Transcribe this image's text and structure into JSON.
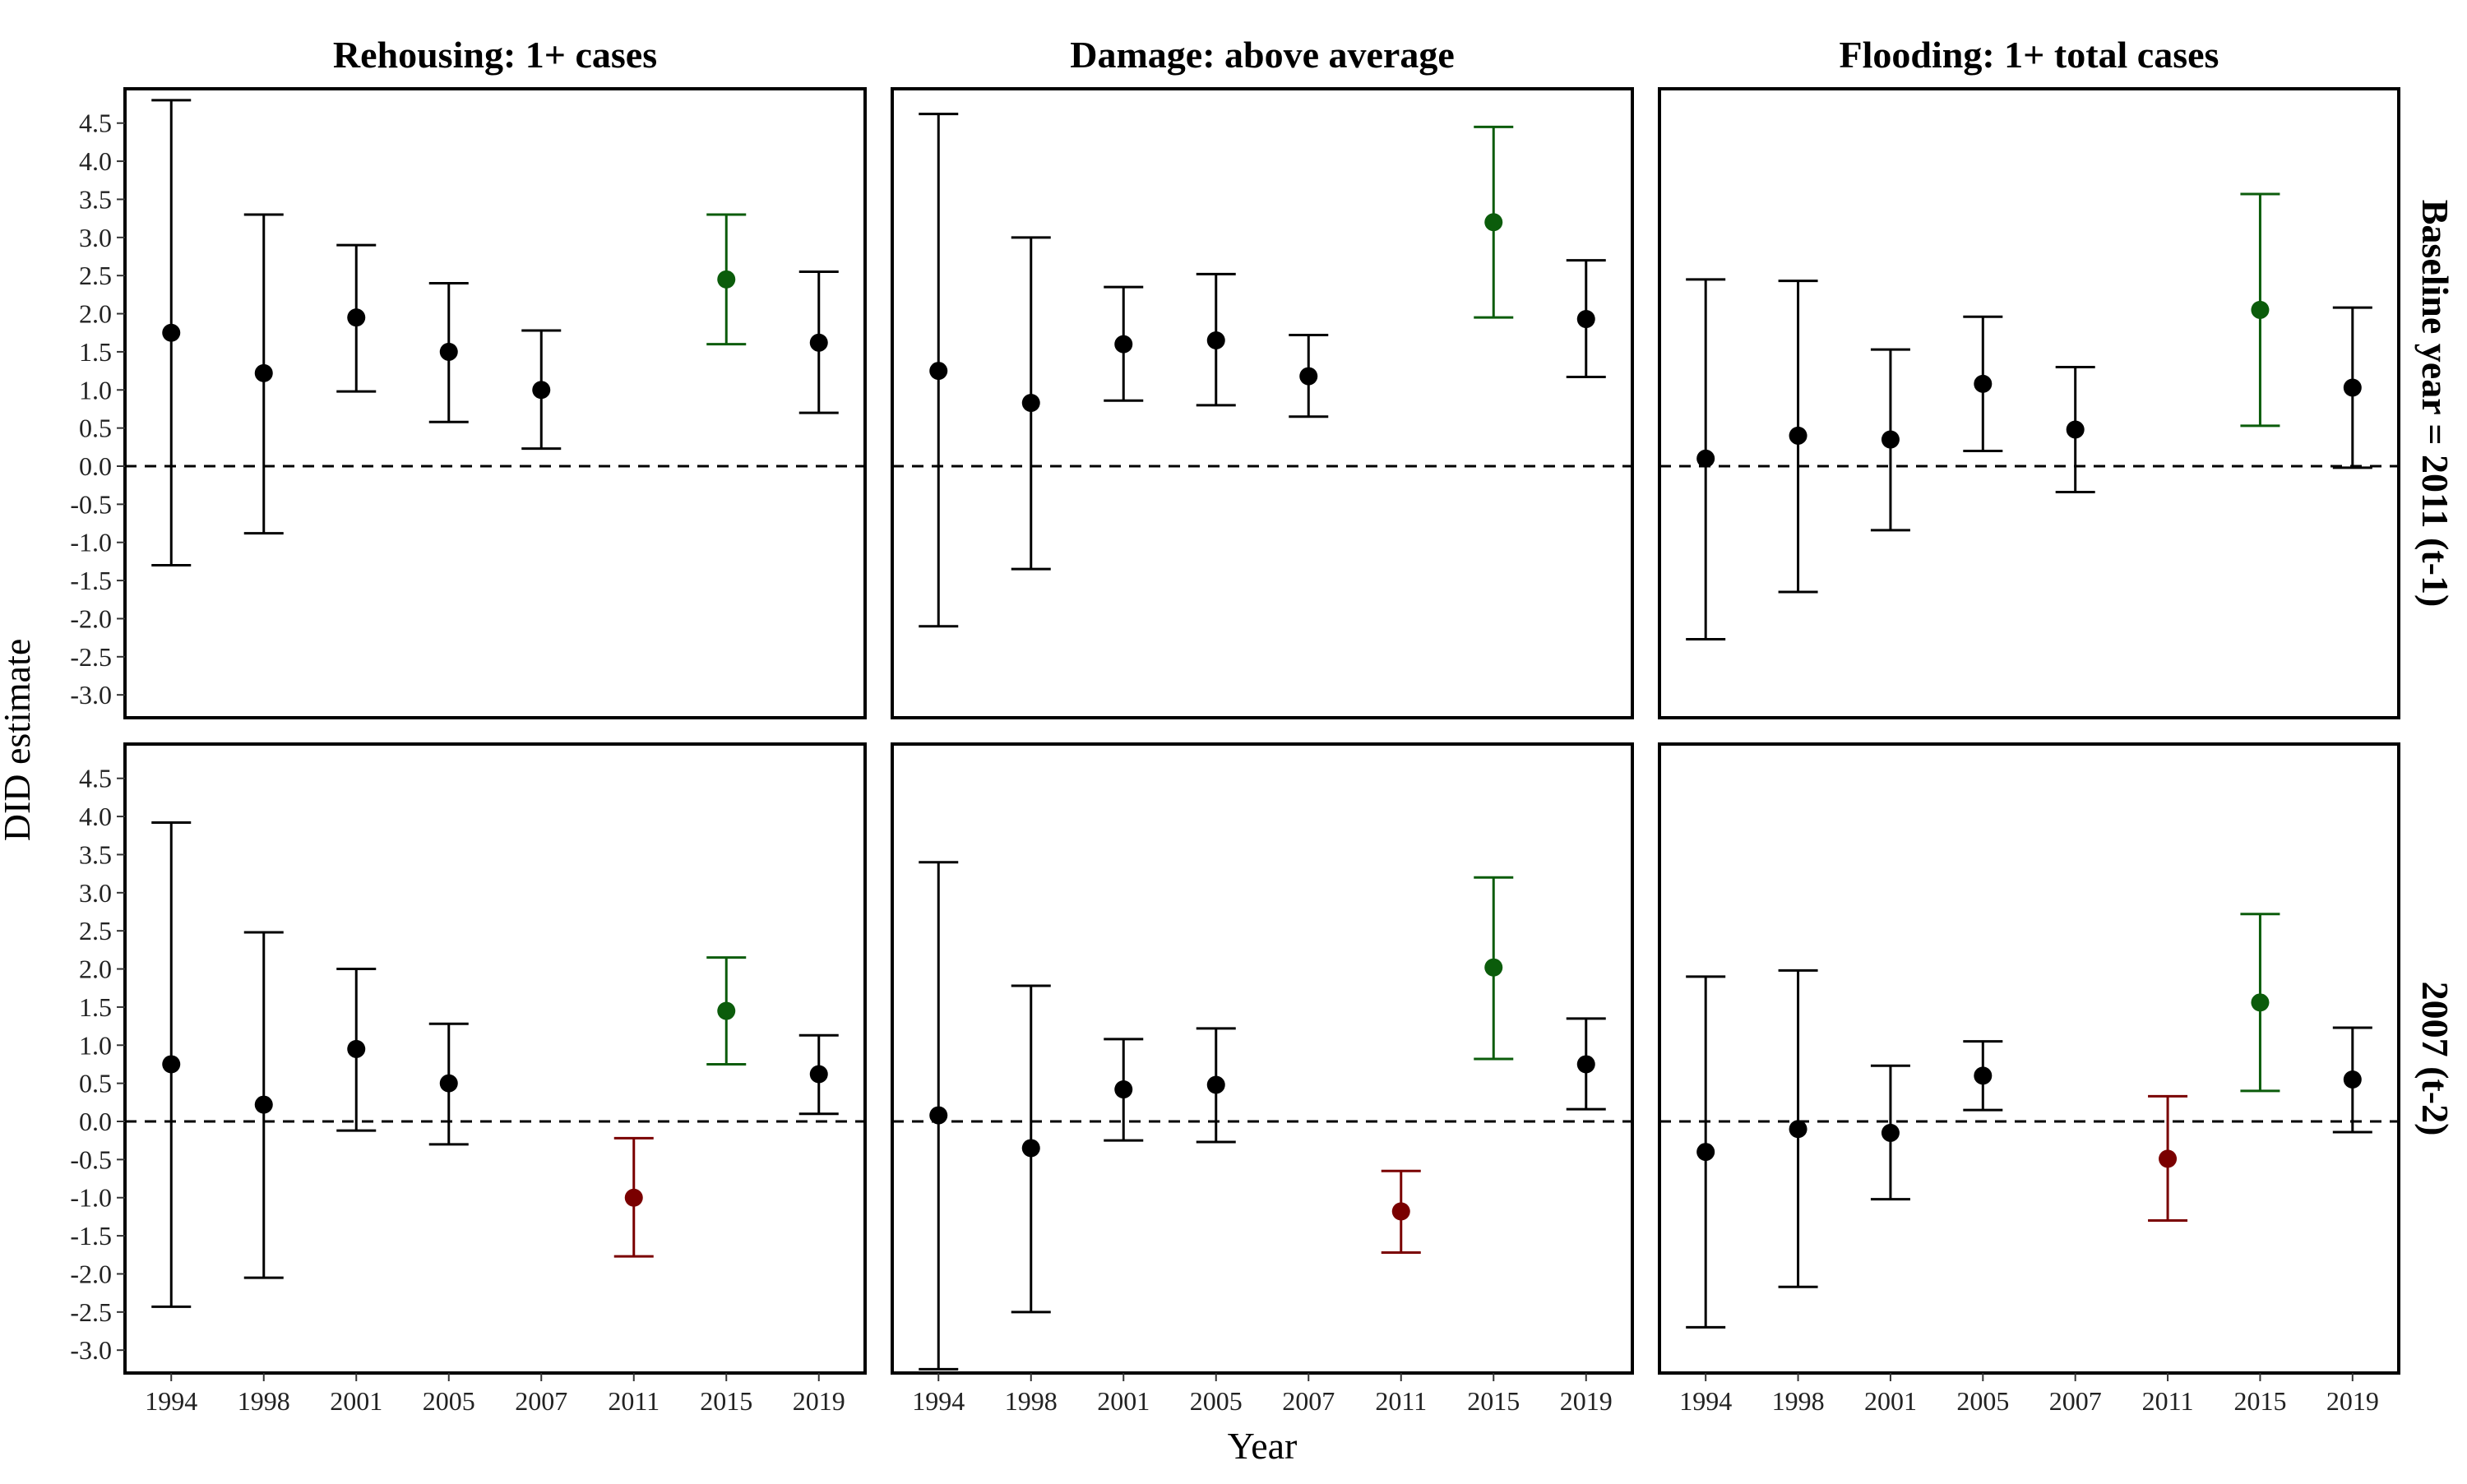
{
  "chart_data": {
    "type": "scatter",
    "kind": "faceted point estimates with confidence-interval error bars",
    "xlabel": "Year",
    "ylabel": "DID estimate",
    "categories": [
      "1994",
      "1998",
      "2001",
      "2005",
      "2007",
      "2011",
      "2015",
      "2019"
    ],
    "yticks": [
      4.5,
      4.0,
      3.5,
      3.0,
      2.5,
      2.0,
      1.5,
      1.0,
      0.5,
      0.0,
      -0.5,
      -1.0,
      -1.5,
      -2.0,
      -2.5,
      -3.0
    ],
    "ytick_labels": [
      "4.5",
      "4.0",
      "3.5",
      "3.0",
      "2.5",
      "2.0",
      "1.5",
      "1.0",
      "0.5",
      "0.0",
      "-0.5",
      "-1.0",
      "-1.5",
      "-2.0",
      "-2.5",
      "-3.0"
    ],
    "ylim": [
      -3.3,
      4.95
    ],
    "reference_line": {
      "y": 0,
      "style": "dashed"
    },
    "grid": false,
    "colors": {
      "default": "#000000",
      "positive": "#0b5c0b",
      "negative": "#7a0000"
    },
    "column_titles": [
      "Rehousing: 1+ cases",
      "Damage: above average",
      "Flooding: 1+ total cases"
    ],
    "row_titles": [
      "Baseline year = 2011 (t-1)",
      "2007 (t-2)"
    ],
    "panels": [
      {
        "row": 0,
        "col": 0,
        "points": [
          {
            "year": "1994",
            "est": 1.75,
            "lo": -1.3,
            "hi": 4.8,
            "color": "default"
          },
          {
            "year": "1998",
            "est": 1.22,
            "lo": -0.88,
            "hi": 3.3,
            "color": "default"
          },
          {
            "year": "2001",
            "est": 1.95,
            "lo": 0.98,
            "hi": 2.9,
            "color": "default"
          },
          {
            "year": "2005",
            "est": 1.5,
            "lo": 0.58,
            "hi": 2.4,
            "color": "default"
          },
          {
            "year": "2007",
            "est": 1.0,
            "lo": 0.23,
            "hi": 1.78,
            "color": "default"
          },
          {
            "year": "2015",
            "est": 2.45,
            "lo": 1.6,
            "hi": 3.3,
            "color": "positive"
          },
          {
            "year": "2019",
            "est": 1.62,
            "lo": 0.7,
            "hi": 2.55,
            "color": "default"
          }
        ]
      },
      {
        "row": 0,
        "col": 1,
        "points": [
          {
            "year": "1994",
            "est": 1.25,
            "lo": -2.1,
            "hi": 4.62,
            "color": "default"
          },
          {
            "year": "1998",
            "est": 0.83,
            "lo": -1.35,
            "hi": 3.0,
            "color": "default"
          },
          {
            "year": "2001",
            "est": 1.6,
            "lo": 0.86,
            "hi": 2.35,
            "color": "default"
          },
          {
            "year": "2005",
            "est": 1.65,
            "lo": 0.8,
            "hi": 2.52,
            "color": "default"
          },
          {
            "year": "2007",
            "est": 1.18,
            "lo": 0.65,
            "hi": 1.72,
            "color": "default"
          },
          {
            "year": "2015",
            "est": 3.2,
            "lo": 1.95,
            "hi": 4.45,
            "color": "positive"
          },
          {
            "year": "2019",
            "est": 1.93,
            "lo": 1.17,
            "hi": 2.7,
            "color": "default"
          }
        ]
      },
      {
        "row": 0,
        "col": 2,
        "points": [
          {
            "year": "1994",
            "est": 0.1,
            "lo": -2.27,
            "hi": 2.45,
            "color": "default"
          },
          {
            "year": "1998",
            "est": 0.4,
            "lo": -1.65,
            "hi": 2.43,
            "color": "default"
          },
          {
            "year": "2001",
            "est": 0.35,
            "lo": -0.84,
            "hi": 1.53,
            "color": "default"
          },
          {
            "year": "2005",
            "est": 1.08,
            "lo": 0.2,
            "hi": 1.96,
            "color": "default"
          },
          {
            "year": "2007",
            "est": 0.48,
            "lo": -0.34,
            "hi": 1.3,
            "color": "default"
          },
          {
            "year": "2015",
            "est": 2.05,
            "lo": 0.53,
            "hi": 3.57,
            "color": "positive"
          },
          {
            "year": "2019",
            "est": 1.03,
            "lo": -0.02,
            "hi": 2.08,
            "color": "default"
          }
        ]
      },
      {
        "row": 1,
        "col": 0,
        "points": [
          {
            "year": "1994",
            "est": 0.75,
            "lo": -2.43,
            "hi": 3.92,
            "color": "default"
          },
          {
            "year": "1998",
            "est": 0.22,
            "lo": -2.05,
            "hi": 2.48,
            "color": "default"
          },
          {
            "year": "2001",
            "est": 0.95,
            "lo": -0.12,
            "hi": 2.0,
            "color": "default"
          },
          {
            "year": "2005",
            "est": 0.5,
            "lo": -0.3,
            "hi": 1.28,
            "color": "default"
          },
          {
            "year": "2011",
            "est": -1.0,
            "lo": -1.77,
            "hi": -0.22,
            "color": "negative"
          },
          {
            "year": "2015",
            "est": 1.45,
            "lo": 0.75,
            "hi": 2.15,
            "color": "positive"
          },
          {
            "year": "2019",
            "est": 0.62,
            "lo": 0.1,
            "hi": 1.13,
            "color": "default"
          }
        ]
      },
      {
        "row": 1,
        "col": 1,
        "points": [
          {
            "year": "1994",
            "est": 0.08,
            "lo": -3.25,
            "hi": 3.4,
            "color": "default"
          },
          {
            "year": "1998",
            "est": -0.35,
            "lo": -2.5,
            "hi": 1.78,
            "color": "default"
          },
          {
            "year": "2001",
            "est": 0.42,
            "lo": -0.25,
            "hi": 1.08,
            "color": "default"
          },
          {
            "year": "2005",
            "est": 0.48,
            "lo": -0.27,
            "hi": 1.22,
            "color": "default"
          },
          {
            "year": "2011",
            "est": -1.18,
            "lo": -1.72,
            "hi": -0.65,
            "color": "negative"
          },
          {
            "year": "2015",
            "est": 2.02,
            "lo": 0.82,
            "hi": 3.2,
            "color": "positive"
          },
          {
            "year": "2019",
            "est": 0.75,
            "lo": 0.16,
            "hi": 1.35,
            "color": "default"
          }
        ]
      },
      {
        "row": 1,
        "col": 2,
        "points": [
          {
            "year": "1994",
            "est": -0.4,
            "lo": -2.7,
            "hi": 1.9,
            "color": "default"
          },
          {
            "year": "1998",
            "est": -0.1,
            "lo": -2.17,
            "hi": 1.98,
            "color": "default"
          },
          {
            "year": "2001",
            "est": -0.15,
            "lo": -1.02,
            "hi": 0.73,
            "color": "default"
          },
          {
            "year": "2005",
            "est": 0.6,
            "lo": 0.15,
            "hi": 1.05,
            "color": "default"
          },
          {
            "year": "2011",
            "est": -0.49,
            "lo": -1.3,
            "hi": 0.33,
            "color": "negative"
          },
          {
            "year": "2015",
            "est": 1.56,
            "lo": 0.4,
            "hi": 2.72,
            "color": "positive"
          },
          {
            "year": "2019",
            "est": 0.55,
            "lo": -0.14,
            "hi": 1.23,
            "color": "default"
          }
        ]
      }
    ]
  }
}
